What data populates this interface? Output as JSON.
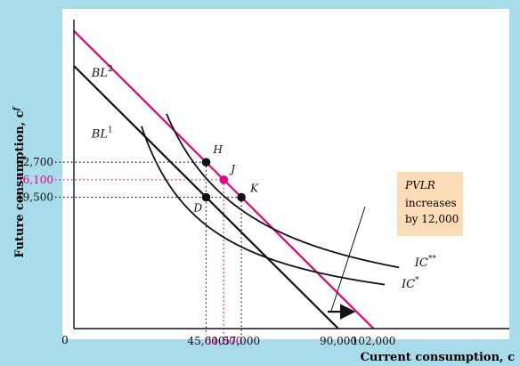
{
  "chart_data": {
    "type": "line",
    "xlabel": "Current consumption, c",
    "ylabel": "Future consumption, c",
    "ylabel_superscript": "f",
    "origin_label": "0",
    "xlim": [
      0,
      120000
    ],
    "ylim": [
      0,
      100000
    ],
    "x_ticks": [
      {
        "value": 45000,
        "label": "45,000",
        "color": "#111111"
      },
      {
        "value": 51000,
        "label": "51,000",
        "color": "#e6007e"
      },
      {
        "value": 57000,
        "label": "57,000",
        "color": "#111111"
      },
      {
        "value": 90000,
        "label": "90,000",
        "color": "#111111"
      },
      {
        "value": 102000,
        "label": "102,000",
        "color": "#111111"
      }
    ],
    "y_ticks": [
      {
        "value": 62700,
        "label": "62,700",
        "color": "#111111"
      },
      {
        "value": 56100,
        "label": "56,100",
        "color": "#e6007e"
      },
      {
        "value": 49500,
        "label": "49,500",
        "color": "#111111"
      }
    ],
    "budget_lines": [
      {
        "name": "BL",
        "sup": "1",
        "x_intercept": 90000,
        "slope": -1.1,
        "color": "#111111",
        "label_at": [
          6000,
          72000
        ]
      },
      {
        "name": "BL",
        "sup": "2",
        "x_intercept": 102000,
        "slope": -1.1,
        "color": "#e6007e",
        "label_at": [
          6000,
          95000
        ]
      }
    ],
    "indifference_curves": [
      {
        "name": "IC",
        "sup": "*",
        "k": 1755000000.0,
        "x_from": 23000,
        "x_to": 106000,
        "color": "#111111",
        "label_at": [
          111500,
          15500
        ]
      },
      {
        "name": "IC",
        "sup": "**",
        "k": 2550000000.0,
        "x_from": 31500,
        "x_to": 111000,
        "color": "#111111",
        "label_at": [
          116000,
          23500
        ]
      }
    ],
    "points": [
      {
        "label": "H",
        "x": 45000,
        "y": 62700,
        "color": "#111111"
      },
      {
        "label": "J",
        "x": 51000,
        "y": 56100,
        "color": "#e6007e"
      },
      {
        "label": "K",
        "x": 57000,
        "y": 49500,
        "color": "#111111"
      },
      {
        "label": "D",
        "x": 45000,
        "y": 49500,
        "color": "#111111"
      }
    ],
    "annotation": {
      "lines": [
        "PVLR",
        "increases",
        "by 12,000"
      ],
      "box_fill": "#fbdcb6"
    },
    "grid": false
  }
}
